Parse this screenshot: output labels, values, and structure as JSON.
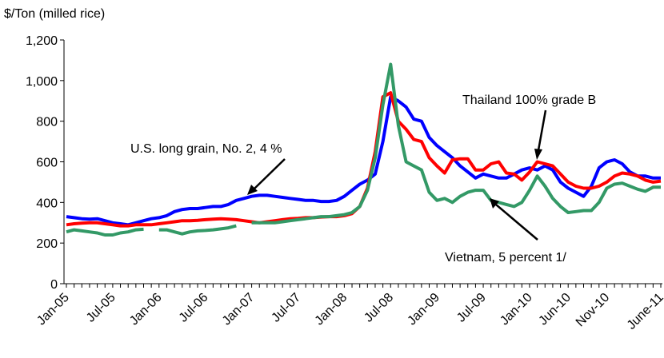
{
  "chart_data": {
    "type": "line",
    "y_axis_label": "$/Ton (milled rice)",
    "categories": [
      "Jan-05",
      null,
      null,
      null,
      null,
      null,
      "Jul-05",
      null,
      null,
      null,
      null,
      null,
      "Jan-06",
      null,
      null,
      null,
      null,
      null,
      "Jul-06",
      null,
      null,
      null,
      null,
      null,
      "Jan-07",
      null,
      null,
      null,
      null,
      null,
      "Jul-07",
      null,
      null,
      null,
      null,
      null,
      "Jan-08",
      null,
      null,
      null,
      null,
      null,
      "Jul-08",
      null,
      null,
      null,
      null,
      null,
      "Jan-09",
      null,
      null,
      null,
      null,
      null,
      "Jul-09",
      null,
      null,
      null,
      null,
      null,
      "Jan-10",
      null,
      null,
      null,
      null,
      "Jun-10",
      null,
      null,
      null,
      null,
      "Nov-10",
      null,
      null,
      null,
      null,
      null,
      null,
      "June-11"
    ],
    "series": [
      {
        "name": "U.S. long grain, No. 2, 4 %",
        "color": "#0000ff",
        "values": [
          330,
          325,
          320,
          318,
          320,
          310,
          300,
          295,
          290,
          300,
          310,
          320,
          325,
          335,
          355,
          365,
          370,
          370,
          375,
          380,
          380,
          390,
          410,
          420,
          430,
          435,
          435,
          430,
          425,
          420,
          415,
          410,
          410,
          405,
          405,
          410,
          430,
          460,
          490,
          510,
          540,
          700,
          920,
          900,
          870,
          810,
          800,
          720,
          680,
          650,
          620,
          580,
          550,
          520,
          540,
          530,
          520,
          520,
          540,
          560,
          570,
          560,
          580,
          560,
          500,
          470,
          450,
          430,
          480,
          570,
          600,
          610,
          590,
          550,
          530,
          530,
          520,
          520
        ]
      },
      {
        "name": "Thailand 100% grade B",
        "color": "#ff0000",
        "values": [
          290,
          295,
          298,
          300,
          300,
          295,
          290,
          285,
          285,
          290,
          290,
          290,
          295,
          300,
          305,
          310,
          310,
          312,
          315,
          318,
          320,
          318,
          315,
          310,
          305,
          300,
          305,
          310,
          315,
          320,
          322,
          325,
          325,
          328,
          330,
          330,
          335,
          345,
          380,
          470,
          650,
          920,
          940,
          800,
          760,
          710,
          700,
          620,
          580,
          545,
          610,
          615,
          615,
          560,
          560,
          590,
          600,
          545,
          540,
          510,
          550,
          600,
          590,
          580,
          540,
          500,
          480,
          470,
          470,
          480,
          500,
          530,
          545,
          540,
          530,
          510,
          500,
          505
        ]
      },
      {
        "name": "Vietnam, 5 percent  1/",
        "color": "#339966",
        "values": [
          255,
          265,
          260,
          255,
          250,
          240,
          240,
          250,
          255,
          265,
          268,
          null,
          265,
          265,
          255,
          245,
          255,
          260,
          262,
          265,
          270,
          275,
          285,
          null,
          300,
          300,
          300,
          300,
          305,
          310,
          315,
          320,
          325,
          330,
          330,
          335,
          340,
          350,
          380,
          460,
          620,
          880,
          1080,
          780,
          600,
          580,
          560,
          450,
          410,
          420,
          400,
          430,
          450,
          460,
          460,
          410,
          400,
          390,
          380,
          400,
          460,
          530,
          480,
          420,
          380,
          350,
          355,
          360,
          360,
          400,
          470,
          490,
          495,
          480,
          465,
          455,
          475,
          475
        ]
      }
    ],
    "ylim": [
      0,
      1200
    ],
    "yticks": [
      0,
      200,
      400,
      600,
      800,
      {
        "value": 1000,
        "label": "1,000"
      },
      {
        "value": 1200,
        "label": "1,200"
      }
    ]
  }
}
